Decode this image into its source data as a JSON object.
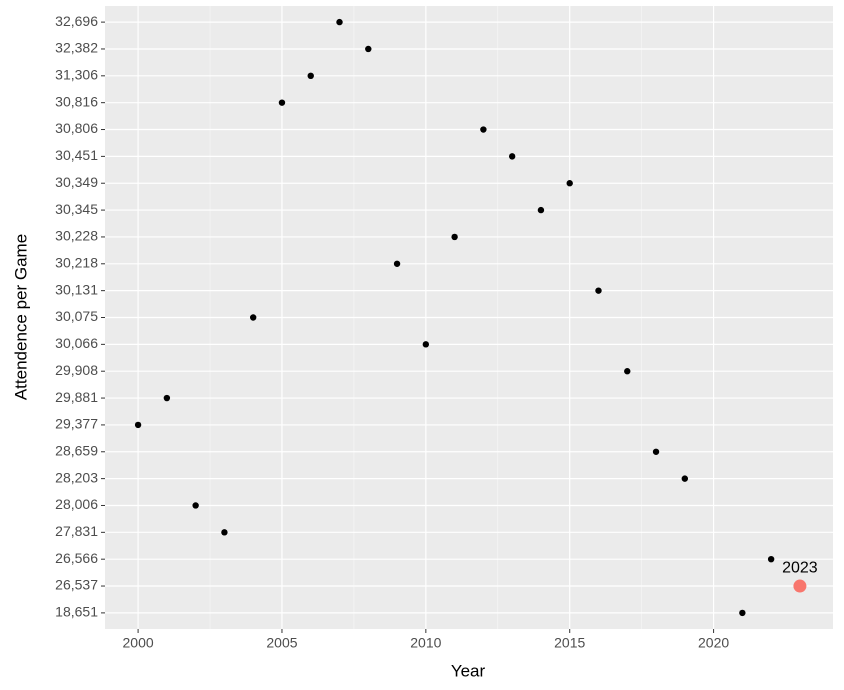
{
  "chart_data": {
    "type": "scatter",
    "x_label": "Year",
    "y_label": "Attendence per Game",
    "x": [
      2000,
      2001,
      2002,
      2003,
      2004,
      2005,
      2006,
      2007,
      2008,
      2009,
      2010,
      2011,
      2012,
      2013,
      2014,
      2015,
      2016,
      2017,
      2018,
      2019,
      2021,
      2022
    ],
    "values": [
      29377,
      29881,
      28006,
      27831,
      30075,
      30816,
      31306,
      32696,
      32382,
      30218,
      30066,
      30228,
      30806,
      30451,
      30345,
      30349,
      30131,
      29908,
      28659,
      28203,
      18651,
      26566
    ],
    "color": "#000000",
    "highlight": {
      "x": 2023,
      "value": 26537,
      "color": "#f8766d"
    },
    "xlim": [
      1998.85,
      2024.15
    ],
    "xticks": [
      2000,
      2005,
      2010,
      2015,
      2020
    ],
    "y_scale": "discrete",
    "yticks": [
      {
        "value": 18651,
        "label": "18,651"
      },
      {
        "value": 26537,
        "label": "26,537"
      },
      {
        "value": 26566,
        "label": "26,566"
      },
      {
        "value": 27831,
        "label": "27,831"
      },
      {
        "value": 28006,
        "label": "28,006"
      },
      {
        "value": 28203,
        "label": "28,203"
      },
      {
        "value": 28659,
        "label": "28,659"
      },
      {
        "value": 29377,
        "label": "29,377"
      },
      {
        "value": 29881,
        "label": "29,881"
      },
      {
        "value": 29908,
        "label": "29,908"
      },
      {
        "value": 30066,
        "label": "30,066"
      },
      {
        "value": 30075,
        "label": "30,075"
      },
      {
        "value": 30131,
        "label": "30,131"
      },
      {
        "value": 30218,
        "label": "30,218"
      },
      {
        "value": 30228,
        "label": "30,228"
      },
      {
        "value": 30345,
        "label": "30,345"
      },
      {
        "value": 30349,
        "label": "30,349"
      },
      {
        "value": 30451,
        "label": "30,451"
      },
      {
        "value": 30806,
        "label": "30,806"
      },
      {
        "value": 30816,
        "label": "30,816"
      },
      {
        "value": 31306,
        "label": "31,306"
      },
      {
        "value": 32382,
        "label": "32,382"
      },
      {
        "value": 32696,
        "label": "32,696"
      }
    ],
    "grid": true
  }
}
